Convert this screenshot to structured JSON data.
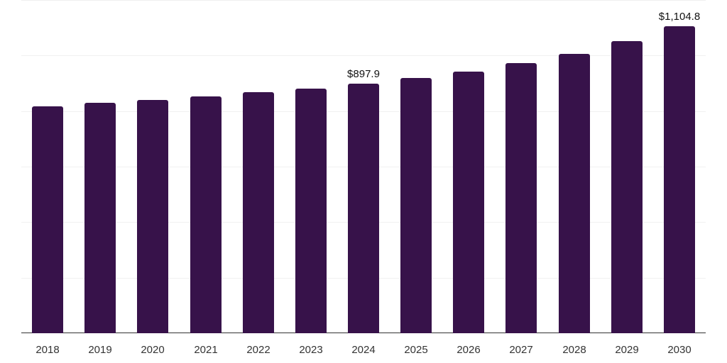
{
  "chart_data": {
    "type": "bar",
    "title": "",
    "xlabel": "",
    "ylabel": "",
    "categories": [
      "2018",
      "2019",
      "2020",
      "2021",
      "2022",
      "2023",
      "2024",
      "2025",
      "2026",
      "2027",
      "2028",
      "2029",
      "2030"
    ],
    "values": [
      816,
      829,
      841,
      854,
      867,
      882,
      897.9,
      918,
      941,
      972,
      1007,
      1051,
      1104.8
    ],
    "data_labels": [
      {
        "category": "2024",
        "text": "$897.9"
      },
      {
        "category": "2030",
        "text": "$1,104.8"
      }
    ],
    "ylim": [
      0,
      1200
    ],
    "grid": true,
    "legend": null,
    "bar_color": "#37124a"
  }
}
